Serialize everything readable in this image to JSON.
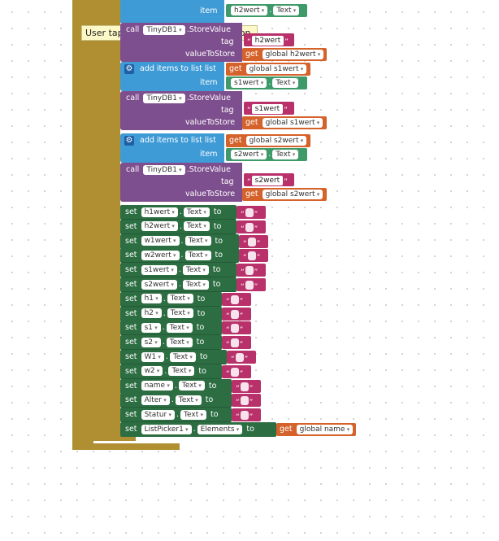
{
  "tooltip": "User tapped and released the button.",
  "top_item": {
    "label": "item",
    "component": "h2wert",
    "prop": "Text"
  },
  "store_blocks": [
    {
      "call": "call",
      "component": "TinyDB1",
      "method": ".StoreValue",
      "tag_label": "tag",
      "tag": "h2wert",
      "value_label": "valueToStore",
      "get": "get",
      "var": "global h2wert"
    },
    {
      "call": "call",
      "component": "TinyDB1",
      "method": ".StoreValue",
      "tag_label": "tag",
      "tag": "s1wert",
      "value_label": "valueToStore",
      "get": "get",
      "var": "global s1wert"
    },
    {
      "call": "call",
      "component": "TinyDB1",
      "method": ".StoreValue",
      "tag_label": "tag",
      "tag": "s2wert",
      "value_label": "valueToStore",
      "get": "get",
      "var": "global s2wert"
    }
  ],
  "add_blocks": [
    {
      "label": "add items to list",
      "list_label": "list",
      "get": "get",
      "list_var": "global s1wert",
      "item_label": "item",
      "component": "s1wert",
      "prop": "Text"
    },
    {
      "label": "add items to list",
      "list_label": "list",
      "get": "get",
      "list_var": "global s2wert",
      "item_label": "item",
      "component": "s2wert",
      "prop": "Text"
    }
  ],
  "set_keyword": "set",
  "to_keyword": "to",
  "set_blocks": [
    {
      "component": "h1wert",
      "prop": "Text"
    },
    {
      "component": "h2wert",
      "prop": "Text"
    },
    {
      "component": "w1wert",
      "prop": "Text"
    },
    {
      "component": "w2wert",
      "prop": "Text"
    },
    {
      "component": "s1wert",
      "prop": "Text"
    },
    {
      "component": "s2wert",
      "prop": "Text"
    },
    {
      "component": "h1",
      "prop": "Text"
    },
    {
      "component": "h2",
      "prop": "Text"
    },
    {
      "component": "s1",
      "prop": "Text"
    },
    {
      "component": "s2",
      "prop": "Text"
    },
    {
      "component": "W1",
      "prop": "Text"
    },
    {
      "component": "w2",
      "prop": "Text"
    },
    {
      "component": "name",
      "prop": "Text"
    },
    {
      "component": "Alter",
      "prop": "Text"
    },
    {
      "component": "Statur",
      "prop": "Text"
    }
  ],
  "last_set": {
    "component": "ListPicker1",
    "prop": "Elements",
    "get": "get",
    "var": "global name"
  },
  "colors": {
    "event": "#b08f32",
    "call": "#7e4f8e",
    "list": "#3f9bd6",
    "setter": "#2c6e42",
    "text": "#b9316a",
    "variable": "#d4622a",
    "component": "#3e9a68"
  }
}
